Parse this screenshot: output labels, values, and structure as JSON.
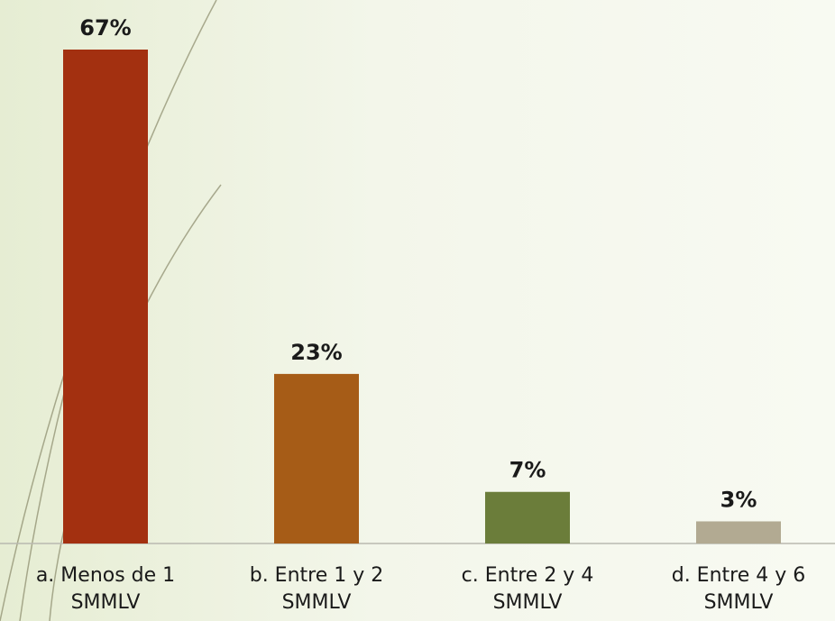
{
  "chart_data": {
    "type": "bar",
    "categories": [
      "a. Menos de 1 SMMLV",
      "b. Entre 1 y 2 SMMLV",
      "c. Entre 2 y 4 SMMLV",
      "d. Entre 4 y 6 SMMLV"
    ],
    "values": [
      67,
      23,
      7,
      3
    ],
    "value_labels": [
      "67%",
      "23%",
      "7%",
      "3%"
    ],
    "colors": [
      "#a33010",
      "#a65c17",
      "#6b7d3a",
      "#b2aa92"
    ]
  }
}
